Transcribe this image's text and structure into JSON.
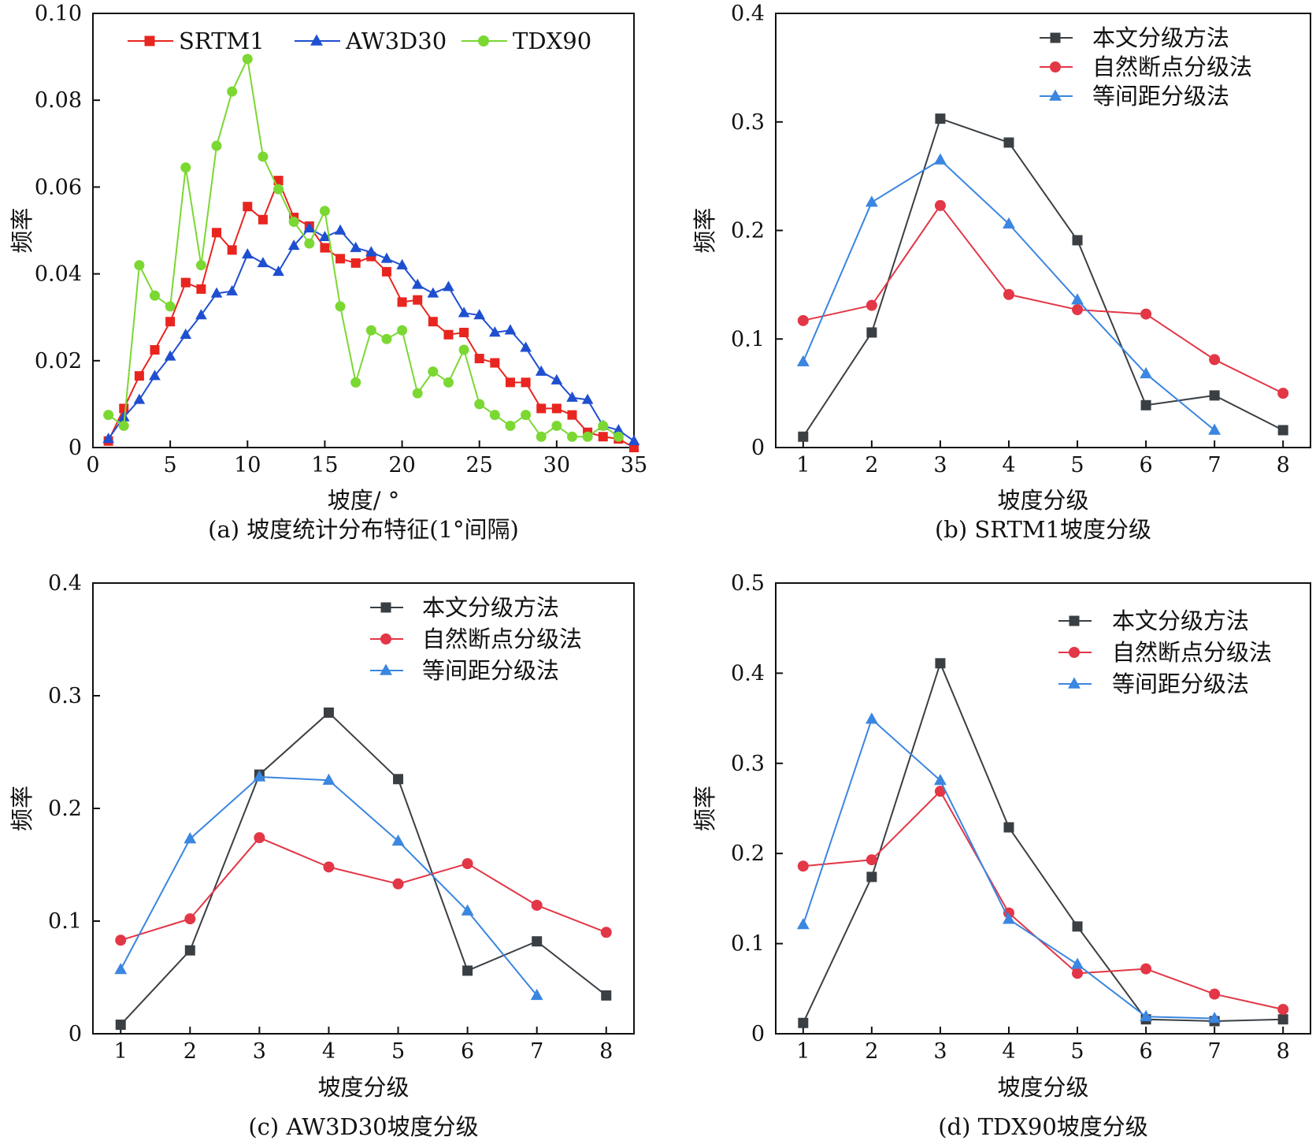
{
  "colors": {
    "srtm1": "#e8251f",
    "aw3d30": "#1f4fd1",
    "tdx90": "#7bd832",
    "method_this": "#3a3f44",
    "method_natural": "#e33646",
    "method_equal": "#3a86e0",
    "axis": "#111111"
  },
  "chart_data": [
    {
      "type": "line",
      "caption": "(a) 坡度统计分布特征(1°间隔)",
      "xlabel": "坡度/ °",
      "ylabel": "频率",
      "xlim": [
        0,
        35
      ],
      "ylim": [
        0,
        0.1
      ],
      "xticks": [
        0,
        5,
        10,
        15,
        20,
        25,
        30,
        35
      ],
      "xtick_labels": [
        "0",
        "5",
        "10",
        "15",
        "20",
        "25",
        "30",
        "35"
      ],
      "yticks": [
        0,
        0.02,
        0.04,
        0.06,
        0.08,
        0.1
      ],
      "ytick_labels": [
        "0",
        "0.02",
        "0.04",
        "0.06",
        "0.08",
        "0.10"
      ],
      "legend_position": "top",
      "grid": false,
      "series": [
        {
          "name": "SRTM1",
          "color": "srtm1",
          "marker": "square",
          "x": [
            1,
            2,
            3,
            4,
            5,
            6,
            7,
            8,
            9,
            10,
            11,
            12,
            13,
            14,
            15,
            16,
            17,
            18,
            19,
            20,
            21,
            22,
            23,
            24,
            25,
            26,
            27,
            28,
            29,
            30,
            31,
            32,
            33,
            34,
            35
          ],
          "y": [
            0.0015,
            0.009,
            0.0165,
            0.0225,
            0.029,
            0.038,
            0.0365,
            0.0495,
            0.0455,
            0.0555,
            0.0525,
            0.0615,
            0.053,
            0.051,
            0.046,
            0.0435,
            0.0425,
            0.044,
            0.0405,
            0.0335,
            0.034,
            0.029,
            0.026,
            0.0265,
            0.0205,
            0.0195,
            0.015,
            0.015,
            0.009,
            0.009,
            0.0075,
            0.0035,
            0.0025,
            0.002,
            0.0
          ]
        },
        {
          "name": "AW3D30",
          "color": "aw3d30",
          "marker": "triangle",
          "x": [
            1,
            2,
            3,
            4,
            5,
            6,
            7,
            8,
            9,
            10,
            11,
            12,
            13,
            14,
            15,
            16,
            17,
            18,
            19,
            20,
            21,
            22,
            23,
            24,
            25,
            26,
            27,
            28,
            29,
            30,
            31,
            32,
            33,
            34,
            35
          ],
          "y": [
            0.002,
            0.007,
            0.011,
            0.0165,
            0.021,
            0.026,
            0.0305,
            0.0355,
            0.036,
            0.0445,
            0.0425,
            0.0405,
            0.0465,
            0.0505,
            0.0485,
            0.05,
            0.046,
            0.045,
            0.0435,
            0.042,
            0.0375,
            0.0355,
            0.037,
            0.031,
            0.0305,
            0.0265,
            0.027,
            0.023,
            0.0175,
            0.0155,
            0.0115,
            0.011,
            0.005,
            0.004,
            0.0015
          ]
        },
        {
          "name": "TDX90",
          "color": "tdx90",
          "marker": "circle",
          "x": [
            1,
            2,
            3,
            4,
            5,
            6,
            7,
            8,
            9,
            10,
            11,
            12,
            13,
            14,
            15,
            16,
            17,
            18,
            19,
            20,
            21,
            22,
            23,
            24,
            25,
            26,
            27,
            28,
            29,
            30,
            31,
            32,
            33,
            34
          ],
          "y": [
            0.0075,
            0.005,
            0.042,
            0.035,
            0.0325,
            0.0645,
            0.042,
            0.0695,
            0.082,
            0.0895,
            0.067,
            0.0595,
            0.052,
            0.047,
            0.0545,
            0.0325,
            0.015,
            0.027,
            0.025,
            0.027,
            0.0125,
            0.0175,
            0.015,
            0.0225,
            0.01,
            0.0075,
            0.005,
            0.0075,
            0.0025,
            0.005,
            0.0025,
            0.0025,
            0.005,
            0.0025
          ]
        }
      ]
    },
    {
      "type": "line",
      "caption": "(b) SRTM1坡度分级",
      "xlabel": "坡度分级",
      "ylabel": "频率",
      "xlim": [
        0.6,
        8.4
      ],
      "ylim": [
        0,
        0.4
      ],
      "xticks": [
        1,
        2,
        3,
        4,
        5,
        6,
        7,
        8
      ],
      "xtick_labels": [
        "1",
        "2",
        "3",
        "4",
        "5",
        "6",
        "7",
        "8"
      ],
      "yticks": [
        0,
        0.1,
        0.2,
        0.3,
        0.4
      ],
      "ytick_labels": [
        "0",
        "0.1",
        "0.2",
        "0.3",
        "0.4"
      ],
      "legend_position": "top-right",
      "grid": false,
      "series": [
        {
          "name": "本文分级方法",
          "color": "method_this",
          "marker": "square",
          "x": [
            1,
            2,
            3,
            4,
            5,
            6,
            7,
            8
          ],
          "y": [
            0.01,
            0.106,
            0.303,
            0.281,
            0.191,
            0.039,
            0.048,
            0.016
          ]
        },
        {
          "name": "自然断点分级法",
          "color": "method_natural",
          "marker": "circle",
          "x": [
            1,
            2,
            3,
            4,
            5,
            6,
            7,
            8
          ],
          "y": [
            0.117,
            0.131,
            0.223,
            0.141,
            0.127,
            0.123,
            0.081,
            0.05
          ]
        },
        {
          "name": "等间距分级法",
          "color": "method_equal",
          "marker": "triangle",
          "x": [
            1,
            2,
            3,
            4,
            5,
            6,
            7
          ],
          "y": [
            0.079,
            0.226,
            0.265,
            0.206,
            0.136,
            0.068,
            0.016
          ]
        }
      ]
    },
    {
      "type": "line",
      "caption": "(c) AW3D30坡度分级",
      "xlabel": "坡度分级",
      "ylabel": "频率",
      "xlim": [
        0.6,
        8.4
      ],
      "ylim": [
        0,
        0.4
      ],
      "xticks": [
        1,
        2,
        3,
        4,
        5,
        6,
        7,
        8
      ],
      "xtick_labels": [
        "1",
        "2",
        "3",
        "4",
        "5",
        "6",
        "7",
        "8"
      ],
      "yticks": [
        0,
        0.1,
        0.2,
        0.3,
        0.4
      ],
      "ytick_labels": [
        "0",
        "0.1",
        "0.2",
        "0.3",
        "0.4"
      ],
      "legend_position": "top-right",
      "grid": false,
      "series": [
        {
          "name": "本文分级方法",
          "color": "method_this",
          "marker": "square",
          "x": [
            1,
            2,
            3,
            4,
            5,
            6,
            7,
            8
          ],
          "y": [
            0.008,
            0.074,
            0.23,
            0.285,
            0.226,
            0.056,
            0.082,
            0.034
          ]
        },
        {
          "name": "自然断点分级法",
          "color": "method_natural",
          "marker": "circle",
          "x": [
            1,
            2,
            3,
            4,
            5,
            6,
            7,
            8
          ],
          "y": [
            0.083,
            0.102,
            0.174,
            0.148,
            0.133,
            0.151,
            0.114,
            0.09
          ]
        },
        {
          "name": "等间距分级法",
          "color": "method_equal",
          "marker": "triangle",
          "x": [
            1,
            2,
            3,
            4,
            5,
            6,
            7
          ],
          "y": [
            0.057,
            0.173,
            0.228,
            0.225,
            0.171,
            0.109,
            0.034
          ]
        }
      ]
    },
    {
      "type": "line",
      "caption": "(d) TDX90坡度分级",
      "xlabel": "坡度分级",
      "ylabel": "频率",
      "xlim": [
        0.6,
        8.4
      ],
      "ylim": [
        0,
        0.5
      ],
      "xticks": [
        1,
        2,
        3,
        4,
        5,
        6,
        7,
        8
      ],
      "xtick_labels": [
        "1",
        "2",
        "3",
        "4",
        "5",
        "6",
        "7",
        "8"
      ],
      "yticks": [
        0,
        0.1,
        0.2,
        0.3,
        0.4,
        0.5
      ],
      "ytick_labels": [
        "0",
        "0.1",
        "0.2",
        "0.3",
        "0.4",
        "0.5"
      ],
      "legend_position": "top-right",
      "grid": false,
      "series": [
        {
          "name": "本文分级方法",
          "color": "method_this",
          "marker": "square",
          "x": [
            1,
            2,
            3,
            4,
            5,
            6,
            7,
            8
          ],
          "y": [
            0.012,
            0.174,
            0.411,
            0.229,
            0.119,
            0.016,
            0.014,
            0.016
          ]
        },
        {
          "name": "自然断点分级法",
          "color": "method_natural",
          "marker": "circle",
          "x": [
            1,
            2,
            3,
            4,
            5,
            6,
            7,
            8
          ],
          "y": [
            0.186,
            0.193,
            0.269,
            0.134,
            0.067,
            0.072,
            0.044,
            0.027
          ]
        },
        {
          "name": "等间距分级法",
          "color": "method_equal",
          "marker": "triangle",
          "x": [
            1,
            2,
            3,
            4,
            5,
            6,
            7
          ],
          "y": [
            0.121,
            0.349,
            0.281,
            0.127,
            0.077,
            0.019,
            0.017
          ]
        }
      ]
    }
  ]
}
